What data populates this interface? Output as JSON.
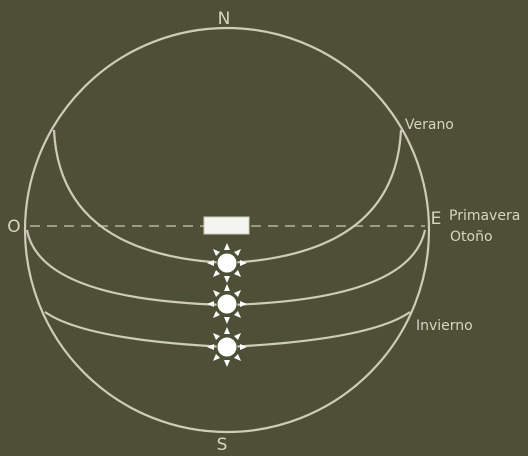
{
  "colors": {
    "background": "#4d5036",
    "line": "#cfcbb8",
    "text": "#d8d4c2",
    "sun": "#ffffff",
    "panel": "#f4f4f0"
  },
  "compass": {
    "north": "N",
    "south": "S",
    "east": "E",
    "west": "O"
  },
  "season_labels": {
    "summer": "Verano",
    "spring": "Primavera",
    "autumn": "Otoño",
    "winter": "Invierno"
  },
  "icons": {
    "sun": "sun-icon",
    "panel": "solar-panel-icon"
  }
}
